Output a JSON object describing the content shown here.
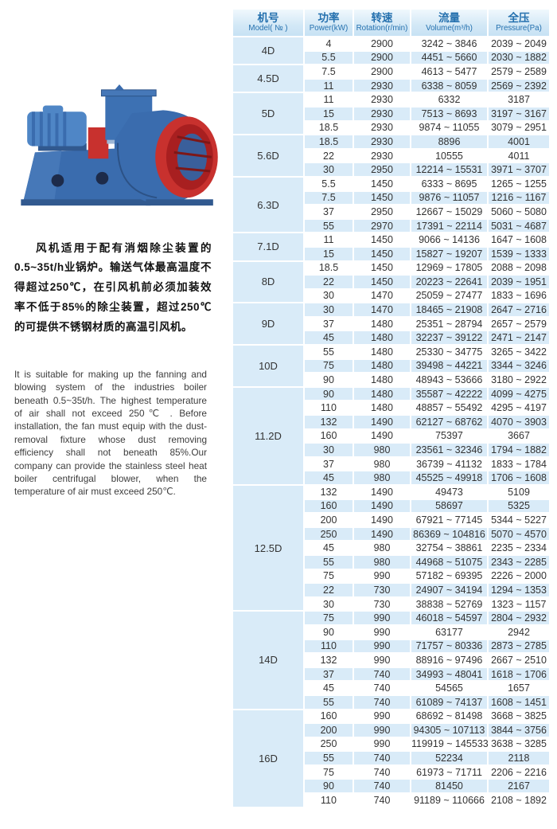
{
  "colors": {
    "stripe_blue": "#d9ebf8",
    "header_text_blue": "#2470ae",
    "fan_blue": "#3a6cae",
    "fan_blue_dark": "#31598f",
    "fan_blue_light": "#4f86c6",
    "fan_red": "#c8312e",
    "fan_red_dark": "#9e1f1f"
  },
  "product_image": {
    "name": "boiler-centrifugal-fan-photo"
  },
  "description_cn": {
    "text": "风机适用于配有消烟除尘装置的0.5~35t/h业锅炉。输送气体最高温度不得超过250℃，在引风机前必须加装效率不低于85%的除尘装置，超过250℃的可提供不锈钢材质的高温引风机。"
  },
  "description_en": {
    "text": "It is suitable for making up the fanning and blowing system of the industries boiler beneath 0.5~35t/h. The highest temperature of air shall not exceed 250℃ . Before installation, the fan must equip with the dust-removal fixture whose dust removing efficiency shall not beneath 85%.Our company can provide the stainless steel heat boiler centrifugal blower, when the temperature of air must exceed 250℃."
  },
  "table": {
    "columns": [
      {
        "zh": "机号",
        "en": "Model( № )"
      },
      {
        "zh": "功率",
        "en": "Power(kW)"
      },
      {
        "zh": "转速",
        "en": "Rotation(r/min)"
      },
      {
        "zh": "流量",
        "en": "Volume(m³/h)"
      },
      {
        "zh": "全压",
        "en": "Pressure(Pa)"
      }
    ],
    "groups": [
      {
        "model": "4D",
        "rows": [
          [
            "4",
            "2900",
            "3242 ~ 3846",
            "2039 ~ 2049"
          ],
          [
            "5.5",
            "2900",
            "4451 ~ 5660",
            "2030 ~ 1882"
          ]
        ]
      },
      {
        "model": "4.5D",
        "rows": [
          [
            "7.5",
            "2900",
            "4613 ~ 5477",
            "2579 ~ 2589"
          ],
          [
            "11",
            "2930",
            "6338 ~ 8059",
            "2569 ~ 2392"
          ]
        ]
      },
      {
        "model": "5D",
        "rows": [
          [
            "11",
            "2930",
            "6332",
            "3187"
          ],
          [
            "15",
            "2930",
            "7513 ~ 8693",
            "3197 ~ 3167"
          ],
          [
            "18.5",
            "2930",
            "9874 ~ 11055",
            "3079 ~ 2951"
          ]
        ]
      },
      {
        "model": "5.6D",
        "rows": [
          [
            "18.5",
            "2930",
            "8896",
            "4001"
          ],
          [
            "22",
            "2930",
            "10555",
            "4011"
          ],
          [
            "30",
            "2950",
            "12214 ~ 15531",
            "3971 ~ 3707"
          ]
        ]
      },
      {
        "model": "6.3D",
        "rows": [
          [
            "5.5",
            "1450",
            "6333 ~ 8695",
            "1265 ~ 1255"
          ],
          [
            "7.5",
            "1450",
            "9876 ~ 11057",
            "1216 ~ 1167"
          ],
          [
            "37",
            "2950",
            "12667 ~ 15029",
            "5060 ~ 5080"
          ],
          [
            "55",
            "2970",
            "17391 ~ 22114",
            "5031 ~ 4687"
          ]
        ]
      },
      {
        "model": "7.1D",
        "rows": [
          [
            "11",
            "1450",
            "9066 ~ 14136",
            "1647 ~ 1608"
          ],
          [
            "15",
            "1450",
            "15827 ~ 19207",
            "1539 ~ 1333"
          ]
        ]
      },
      {
        "model": "8D",
        "rows": [
          [
            "18.5",
            "1450",
            "12969 ~ 17805",
            "2088 ~ 2098"
          ],
          [
            "22",
            "1450",
            "20223 ~ 22641",
            "2039 ~ 1951"
          ],
          [
            "30",
            "1470",
            "25059 ~ 27477",
            "1833 ~ 1696"
          ]
        ]
      },
      {
        "model": "9D",
        "rows": [
          [
            "30",
            "1470",
            "18465 ~ 21908",
            "2647 ~ 2716"
          ],
          [
            "37",
            "1480",
            "25351 ~ 28794",
            "2657 ~ 2579"
          ],
          [
            "45",
            "1480",
            "32237 ~ 39122",
            "2471 ~ 2147"
          ]
        ]
      },
      {
        "model": "10D",
        "rows": [
          [
            "55",
            "1480",
            "25330 ~ 34775",
            "3265 ~ 3422"
          ],
          [
            "75",
            "1480",
            "39498 ~ 44221",
            "3344 ~ 3246"
          ],
          [
            "90",
            "1480",
            "48943 ~ 53666",
            "3180 ~ 2922"
          ]
        ]
      },
      {
        "model": "11.2D",
        "rows": [
          [
            "90",
            "1480",
            "35587 ~ 42222",
            "4099 ~ 4275"
          ],
          [
            "110",
            "1480",
            "48857 ~ 55492",
            "4295 ~ 4197"
          ],
          [
            "132",
            "1490",
            "62127 ~ 68762",
            "4070 ~ 3903"
          ],
          [
            "160",
            "1490",
            "75397",
            "3667"
          ],
          [
            "30",
            "980",
            "23561 ~ 32346",
            "1794 ~ 1882"
          ],
          [
            "37",
            "980",
            "36739 ~ 41132",
            "1833 ~ 1784"
          ],
          [
            "45",
            "980",
            "45525 ~ 49918",
            "1706 ~ 1608"
          ]
        ]
      },
      {
        "model": "12.5D",
        "rows": [
          [
            "132",
            "1490",
            "49473",
            "5109"
          ],
          [
            "160",
            "1490",
            "58697",
            "5325"
          ],
          [
            "200",
            "1490",
            "67921 ~ 77145",
            "5344 ~ 5227"
          ],
          [
            "250",
            "1490",
            "86369 ~ 104816",
            "5070 ~ 4570"
          ],
          [
            "45",
            "980",
            "32754 ~ 38861",
            "2235 ~ 2334"
          ],
          [
            "55",
            "980",
            "44968 ~ 51075",
            "2343 ~ 2285"
          ],
          [
            "75",
            "990",
            "57182 ~ 69395",
            "2226 ~ 2000"
          ],
          [
            "22",
            "730",
            "24907 ~ 34194",
            "1294 ~ 1353"
          ],
          [
            "30",
            "730",
            "38838 ~ 52769",
            "1323 ~ 1157"
          ]
        ]
      },
      {
        "model": "14D",
        "rows": [
          [
            "75",
            "990",
            "46018 ~ 54597",
            "2804 ~ 2932"
          ],
          [
            "90",
            "990",
            "63177",
            "2942"
          ],
          [
            "110",
            "990",
            "71757 ~ 80336",
            "2873 ~ 2785"
          ],
          [
            "132",
            "990",
            "88916 ~ 97496",
            "2667 ~ 2510"
          ],
          [
            "37",
            "740",
            "34993 ~ 48041",
            "1618 ~ 1706"
          ],
          [
            "45",
            "740",
            "54565",
            "1657"
          ],
          [
            "55",
            "740",
            "61089 ~ 74137",
            "1608 ~ 1451"
          ]
        ]
      },
      {
        "model": "16D",
        "rows": [
          [
            "160",
            "990",
            "68692 ~ 81498",
            "3668 ~ 3825"
          ],
          [
            "200",
            "990",
            "94305 ~ 107113",
            "3844 ~ 3756"
          ],
          [
            "250",
            "990",
            "119919 ~ 145533",
            "3638 ~ 3285"
          ],
          [
            "55",
            "740",
            "52234",
            "2118"
          ],
          [
            "75",
            "740",
            "61973 ~ 71711",
            "2206 ~ 2216"
          ],
          [
            "90",
            "740",
            "81450",
            "2167"
          ],
          [
            "110",
            "740",
            "91189 ~ 110666",
            "2108 ~ 1892"
          ]
        ]
      }
    ]
  }
}
